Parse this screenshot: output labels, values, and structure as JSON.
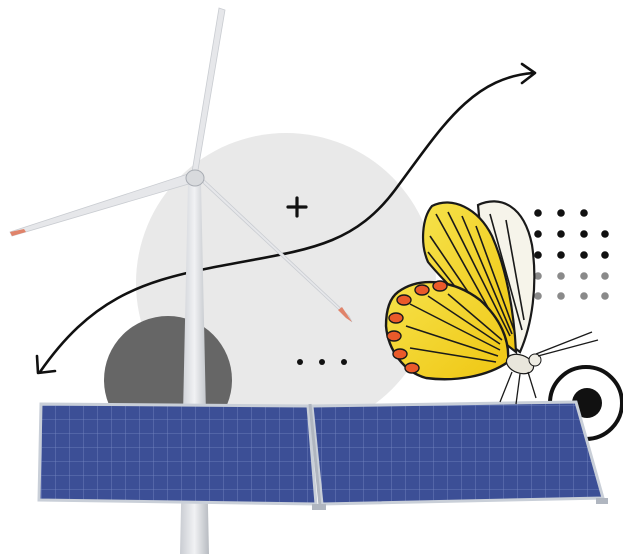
{
  "illustration": {
    "elements": [
      "wind-turbine",
      "solar-panels",
      "butterfly",
      "trend-curve",
      "plus-mark",
      "dot-grid",
      "ellipsis-dots",
      "target-ring"
    ]
  },
  "colors": {
    "background": "#ffffff",
    "backdrop_circle": "#e9e9e9",
    "dark_circle": "#666666",
    "panel_blue": "#3c4f96",
    "panel_frame": "#c9cfd8",
    "turbine": "#e8e8ea",
    "turbine_shade": "#b9bcc2",
    "blade_tip": "#e0836a",
    "curve": "#111111",
    "dot_dark": "#111111",
    "dot_light": "#8a8a8a",
    "butterfly_yellow": "#f3d21b",
    "butterfly_white": "#f6f4ea",
    "butterfly_orange": "#ea5a2a",
    "butterfly_vein": "#1a1a1a"
  }
}
